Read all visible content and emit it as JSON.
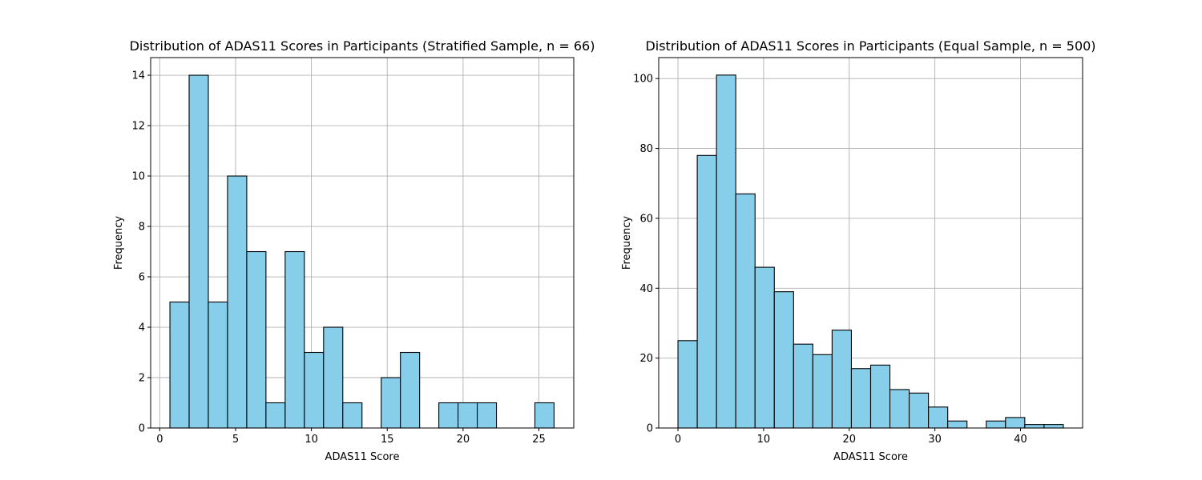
{
  "colors": {
    "bar_fill": "#87ceeb",
    "bar_edge": "#000000",
    "grid": "#b0b0b0"
  },
  "chart_data": [
    {
      "type": "bar",
      "title": "Distribution of ADAS11 Scores in Participants (Stratified Sample, n = 66)",
      "xlabel": "ADAS11 Score",
      "ylabel": "Frequency",
      "grid": true,
      "bin_edges": [
        0.67,
        1.937,
        3.203,
        4.47,
        5.737,
        7.003,
        8.27,
        9.537,
        10.803,
        12.07,
        13.337,
        14.603,
        15.87,
        17.137,
        18.403,
        19.67,
        20.937,
        22.203,
        23.47,
        24.737,
        26.0
      ],
      "values": [
        5,
        14,
        5,
        10,
        7,
        1,
        7,
        3,
        4,
        1,
        0,
        2,
        3,
        0,
        1,
        1,
        1,
        0,
        0,
        1
      ],
      "xlim": [
        -0.6,
        27.3
      ],
      "ylim": [
        0,
        14.7
      ],
      "xticks": [
        0,
        5,
        10,
        15,
        20,
        25
      ],
      "yticks": [
        0,
        2,
        4,
        6,
        8,
        10,
        12,
        14
      ]
    },
    {
      "type": "bar",
      "title": "Distribution of ADAS11 Scores in Participants (Equal Sample, n = 500)",
      "xlabel": "ADAS11 Score",
      "ylabel": "Frequency",
      "grid": true,
      "bin_edges": [
        0.0,
        2.25,
        4.5,
        6.75,
        9.0,
        11.25,
        13.5,
        15.75,
        18.0,
        20.25,
        22.5,
        24.75,
        27.0,
        29.25,
        31.5,
        33.75,
        36.0,
        38.25,
        40.5,
        42.75,
        45.0
      ],
      "values": [
        25,
        78,
        101,
        67,
        46,
        39,
        24,
        21,
        28,
        17,
        18,
        11,
        10,
        6,
        2,
        0,
        2,
        3,
        1,
        1
      ],
      "xlim": [
        -2.25,
        47.25
      ],
      "ylim": [
        0,
        106
      ],
      "xticks": [
        0,
        10,
        20,
        30,
        40
      ],
      "yticks": [
        0,
        20,
        40,
        60,
        80,
        100
      ]
    }
  ]
}
